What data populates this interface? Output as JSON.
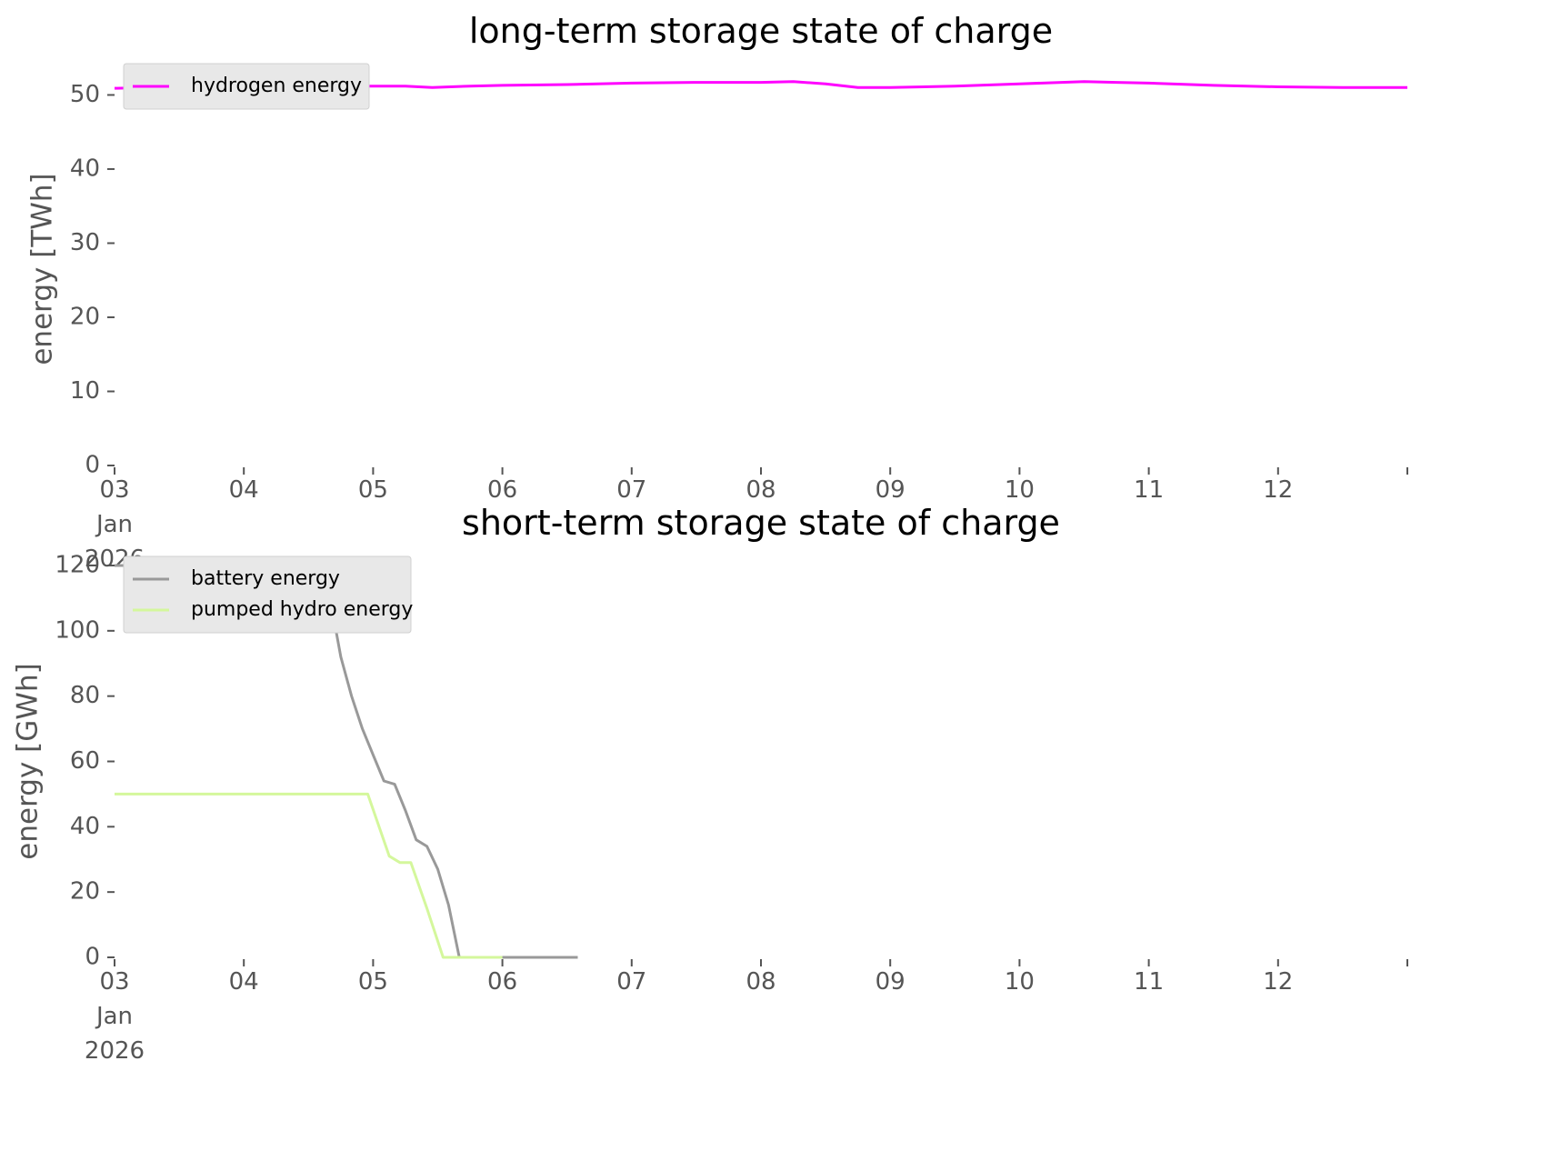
{
  "chart_data": [
    {
      "type": "line",
      "title": "long-term storage state of charge",
      "xlabel": "",
      "ylabel": "energy [TWh]",
      "x_range": [
        "2026-01-03T00:00",
        "2026-01-13T00:00"
      ],
      "ylim": [
        0,
        53
      ],
      "y_ticks": [
        0,
        10,
        20,
        30,
        40,
        50
      ],
      "x_ticks": [
        {
          "date": "2026-01-03",
          "lines": [
            "03",
            "Jan",
            "2026"
          ]
        },
        {
          "date": "2026-01-04",
          "lines": [
            "04"
          ]
        },
        {
          "date": "2026-01-05",
          "lines": [
            "05"
          ]
        },
        {
          "date": "2026-01-06",
          "lines": [
            "06"
          ]
        },
        {
          "date": "2026-01-07",
          "lines": [
            "07"
          ]
        },
        {
          "date": "2026-01-08",
          "lines": [
            "08"
          ]
        },
        {
          "date": "2026-01-09",
          "lines": [
            "09"
          ]
        },
        {
          "date": "2026-01-10",
          "lines": [
            "10"
          ]
        },
        {
          "date": "2026-01-11",
          "lines": [
            "11"
          ]
        },
        {
          "date": "2026-01-12",
          "lines": [
            "12"
          ]
        },
        {
          "date": "2026-01-13",
          "lines": [
            ""
          ]
        }
      ],
      "grid": false,
      "legend_position": "top-left",
      "series": [
        {
          "name": "hydrogen energy",
          "color": "#ff00ff",
          "points": [
            [
              "2026-01-03T00:00",
              50.9
            ],
            [
              "2026-01-03T12:00",
              51.1
            ],
            [
              "2026-01-04T00:00",
              51.2
            ],
            [
              "2026-01-04T12:00",
              51.2
            ],
            [
              "2026-01-05T00:00",
              51.2
            ],
            [
              "2026-01-05T06:00",
              51.2
            ],
            [
              "2026-01-05T11:00",
              51.0
            ],
            [
              "2026-01-05T18:00",
              51.2
            ],
            [
              "2026-01-06T00:00",
              51.3
            ],
            [
              "2026-01-06T12:00",
              51.4
            ],
            [
              "2026-01-07T00:00",
              51.6
            ],
            [
              "2026-01-07T12:00",
              51.7
            ],
            [
              "2026-01-08T00:00",
              51.7
            ],
            [
              "2026-01-08T06:00",
              51.8
            ],
            [
              "2026-01-08T12:00",
              51.5
            ],
            [
              "2026-01-08T18:00",
              51.0
            ],
            [
              "2026-01-09T00:00",
              51.0
            ],
            [
              "2026-01-09T12:00",
              51.2
            ],
            [
              "2026-01-10T00:00",
              51.5
            ],
            [
              "2026-01-10T12:00",
              51.8
            ],
            [
              "2026-01-10T18:00",
              51.7
            ],
            [
              "2026-01-11T00:00",
              51.6
            ],
            [
              "2026-01-11T12:00",
              51.3
            ],
            [
              "2026-01-12T00:00",
              51.1
            ],
            [
              "2026-01-12T12:00",
              51.0
            ],
            [
              "2026-01-13T00:00",
              51.0
            ]
          ]
        }
      ]
    },
    {
      "type": "line",
      "title": "short-term storage state of charge",
      "xlabel": "",
      "ylabel": "energy [GWh]",
      "x_range": [
        "2026-01-03T00:00",
        "2026-01-13T00:00"
      ],
      "ylim": [
        0,
        120
      ],
      "y_ticks": [
        0,
        20,
        40,
        60,
        80,
        100,
        120
      ],
      "x_ticks": [
        {
          "date": "2026-01-03",
          "lines": [
            "03",
            "Jan",
            "2026"
          ]
        },
        {
          "date": "2026-01-04",
          "lines": [
            "04"
          ]
        },
        {
          "date": "2026-01-05",
          "lines": [
            "05"
          ]
        },
        {
          "date": "2026-01-06",
          "lines": [
            "06"
          ]
        },
        {
          "date": "2026-01-07",
          "lines": [
            "07"
          ]
        },
        {
          "date": "2026-01-08",
          "lines": [
            "08"
          ]
        },
        {
          "date": "2026-01-09",
          "lines": [
            "09"
          ]
        },
        {
          "date": "2026-01-10",
          "lines": [
            "10"
          ]
        },
        {
          "date": "2026-01-11",
          "lines": [
            "11"
          ]
        },
        {
          "date": "2026-01-12",
          "lines": [
            "12"
          ]
        },
        {
          "date": "2026-01-13",
          "lines": [
            ""
          ]
        }
      ],
      "grid": false,
      "legend_position": "top-left",
      "series": [
        {
          "name": "battery energy",
          "color": "#999999",
          "points": [
            [
              "2026-01-03T00:00",
              120
            ],
            [
              "2026-01-04T14:00",
              120
            ],
            [
              "2026-01-04T16:00",
              110
            ],
            [
              "2026-01-04T18:00",
              92
            ],
            [
              "2026-01-04T20:00",
              80
            ],
            [
              "2026-01-04T22:00",
              70
            ],
            [
              "2026-01-05T00:00",
              62
            ],
            [
              "2026-01-05T02:00",
              54
            ],
            [
              "2026-01-05T04:00",
              53
            ],
            [
              "2026-01-05T06:00",
              45
            ],
            [
              "2026-01-05T08:00",
              36
            ],
            [
              "2026-01-05T10:00",
              34
            ],
            [
              "2026-01-05T12:00",
              27
            ],
            [
              "2026-01-05T14:00",
              16
            ],
            [
              "2026-01-05T16:00",
              0
            ],
            [
              "2026-01-05T22:00",
              0
            ],
            [
              "2026-01-06T00:00",
              0
            ],
            [
              "2026-01-06T02:00",
              0
            ],
            [
              "2026-01-06T04:00",
              0
            ],
            [
              "2026-01-06T06:00",
              0
            ],
            [
              "2026-01-06T08:00",
              0
            ],
            [
              "2026-01-06T10:00",
              0
            ],
            [
              "2026-01-06T12:00",
              0
            ],
            [
              "2026-01-06T14:00",
              0
            ],
            [
              "2026-01-05T16:00",
              0
            ],
            [
              "2026-01-05T18:00",
              0
            ]
          ],
          "points_note_ignore": false
        },
        {
          "name": "pumped hydro energy",
          "color": "#d4f79c",
          "points": [
            [
              "2026-01-03T00:00",
              50
            ],
            [
              "2026-01-04T23:00",
              50
            ],
            [
              "2026-01-05T03:00",
              31
            ],
            [
              "2026-01-05T05:00",
              29
            ],
            [
              "2026-01-05T07:00",
              29
            ],
            [
              "2026-01-05T10:00",
              15
            ],
            [
              "2026-01-05T13:00",
              0
            ],
            [
              "2026-01-05T17:00",
              0
            ],
            [
              "2026-01-05T21:00",
              0
            ],
            [
              "2026-01-06T00:00",
              0
            ]
          ]
        }
      ]
    }
  ]
}
